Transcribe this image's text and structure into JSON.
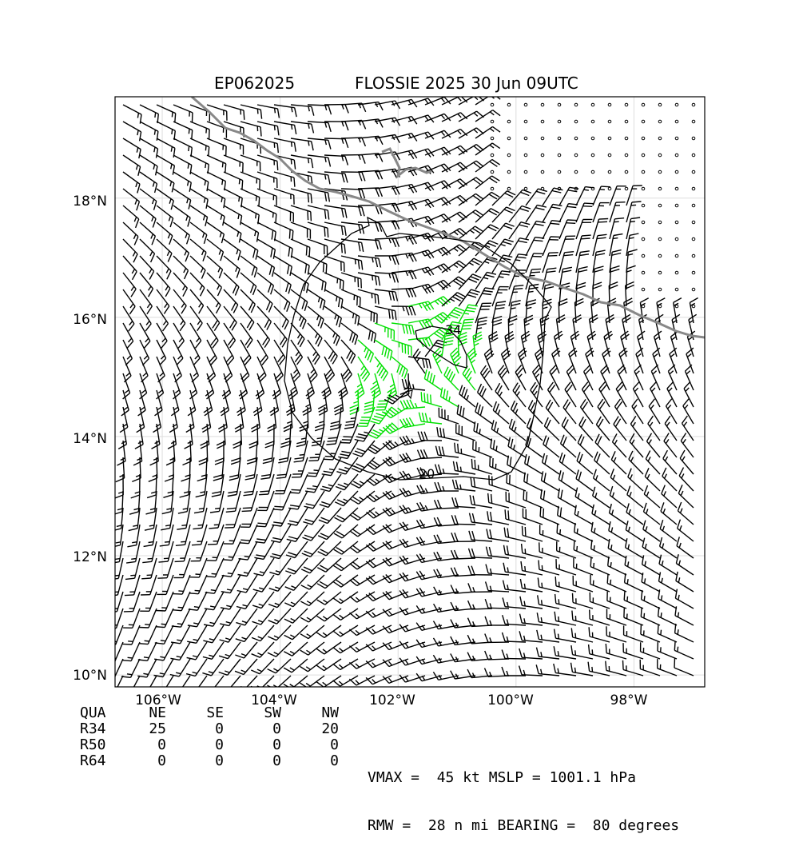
{
  "title": {
    "storm_id": "EP062025",
    "storm_info": "FLOSSIE 2025 30 Jun 09UTC"
  },
  "map": {
    "lon_range": [
      -106.8,
      -96.8
    ],
    "lat_range": [
      9.8,
      19.7
    ],
    "lon_ticks": [
      {
        "value": -106,
        "label": "106°W"
      },
      {
        "value": -104,
        "label": "104°W"
      },
      {
        "value": -102,
        "label": "102°W"
      },
      {
        "value": -100,
        "label": "100°W"
      },
      {
        "value": -98,
        "label": "98°W"
      }
    ],
    "lat_ticks": [
      {
        "value": 10,
        "label": "10°N"
      },
      {
        "value": 12,
        "label": "12°N"
      },
      {
        "value": 14,
        "label": "14°N"
      },
      {
        "value": 16,
        "label": "16°N"
      },
      {
        "value": 18,
        "label": "18°N"
      }
    ],
    "grid": true,
    "storm_center": {
      "lon": -101.7,
      "lat": 15.1
    },
    "rmw_nmi": 28,
    "contours": [
      {
        "label": "20",
        "label_lon": -101.6,
        "label_lat": 13.35
      },
      {
        "label": "34",
        "label_lon": -100.95,
        "label_lat": 15.78
      }
    ],
    "colors": {
      "coastline": "#888888",
      "barb_default": "#000000",
      "barb_34kt": "#00e000",
      "barb_50kt": "#ffa500",
      "contour": "#000000"
    }
  },
  "table": {
    "headers": [
      "QUA",
      "NE",
      "SE",
      "SW",
      "NW"
    ],
    "rows": [
      {
        "label": "R34",
        "values": [
          "25",
          "0",
          "0",
          "20"
        ]
      },
      {
        "label": "R50",
        "values": [
          "0",
          "0",
          "0",
          "0"
        ]
      },
      {
        "label": "R64",
        "values": [
          "0",
          "0",
          "0",
          "0"
        ]
      }
    ]
  },
  "stats": {
    "line1": "VMAX =  45 kt MSLP = 1001.1 hPa",
    "line2": "RMW =  28 n mi BEARING =  80 degrees"
  }
}
